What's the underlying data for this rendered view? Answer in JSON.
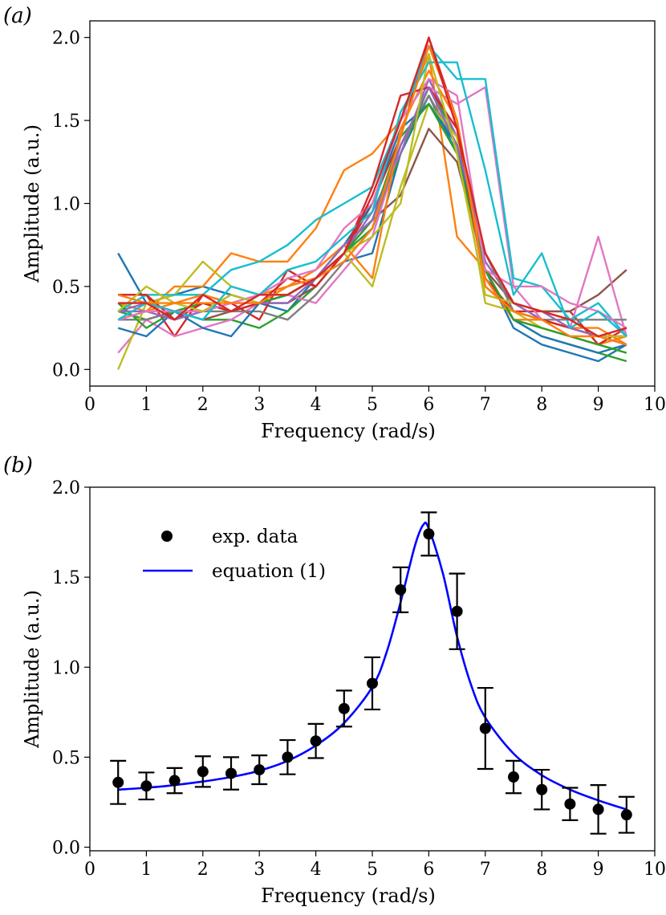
{
  "chart_data": [
    {
      "type": "line",
      "panel_label": "(a)",
      "xlabel": "Frequency (rad/s)",
      "ylabel": "Amplitude (a.u.)",
      "xlim": [
        0,
        10
      ],
      "ylim": [
        -0.1,
        2.1
      ],
      "xticks": [
        0,
        1,
        2,
        3,
        4,
        5,
        6,
        7,
        8,
        9,
        10
      ],
      "yticks": [
        0.0,
        0.5,
        1.0,
        1.5,
        2.0
      ],
      "ytick_labels": [
        "0.0",
        "0.5",
        "1.0",
        "1.5",
        "2.0"
      ],
      "grid": false,
      "x": [
        0.5,
        1.0,
        1.5,
        2.0,
        2.5,
        3.0,
        3.5,
        4.0,
        4.5,
        5.0,
        5.5,
        6.0,
        6.5,
        7.0,
        7.5,
        8.0,
        8.5,
        9.0,
        9.5
      ],
      "series": [
        {
          "color": "#1f77b4",
          "values": [
            0.7,
            0.4,
            0.45,
            0.5,
            0.45,
            0.4,
            0.35,
            0.55,
            0.65,
            0.7,
            1.3,
            1.65,
            1.3,
            0.6,
            0.25,
            0.15,
            0.1,
            0.05,
            0.15
          ]
        },
        {
          "color": "#ff7f0e",
          "values": [
            0.4,
            0.35,
            0.5,
            0.5,
            0.7,
            0.65,
            0.65,
            0.85,
            1.2,
            1.3,
            1.5,
            1.9,
            0.8,
            0.6,
            0.3,
            0.25,
            0.2,
            0.15,
            0.2
          ]
        },
        {
          "color": "#2ca02c",
          "values": [
            0.35,
            0.3,
            0.35,
            0.3,
            0.3,
            0.25,
            0.35,
            0.5,
            0.7,
            0.85,
            1.3,
            1.7,
            1.4,
            0.6,
            0.3,
            0.2,
            0.15,
            0.1,
            0.05
          ]
        },
        {
          "color": "#d62728",
          "values": [
            0.45,
            0.45,
            0.2,
            0.45,
            0.4,
            0.3,
            0.6,
            0.5,
            0.7,
            1.0,
            1.4,
            2.0,
            1.5,
            0.55,
            0.35,
            0.35,
            0.35,
            0.15,
            0.25
          ]
        },
        {
          "color": "#9467bd",
          "values": [
            0.35,
            0.4,
            0.35,
            0.4,
            0.35,
            0.4,
            0.45,
            0.55,
            0.7,
            0.95,
            1.3,
            1.75,
            1.4,
            0.65,
            0.4,
            0.3,
            0.25,
            0.2,
            0.15
          ]
        },
        {
          "color": "#8c564b",
          "values": [
            0.3,
            0.3,
            0.35,
            0.3,
            0.35,
            0.4,
            0.4,
            0.5,
            0.7,
            0.9,
            1.05,
            1.45,
            1.25,
            0.6,
            0.4,
            0.35,
            0.35,
            0.45,
            0.6
          ]
        },
        {
          "color": "#e377c2",
          "values": [
            0.1,
            0.3,
            0.2,
            0.25,
            0.3,
            0.4,
            0.45,
            0.4,
            0.6,
            0.8,
            1.35,
            1.7,
            1.6,
            1.7,
            0.5,
            0.3,
            0.25,
            0.8,
            0.2
          ]
        },
        {
          "color": "#7f7f7f",
          "values": [
            0.3,
            0.3,
            0.35,
            0.35,
            0.35,
            0.35,
            0.3,
            0.45,
            0.65,
            0.85,
            1.35,
            1.65,
            1.35,
            0.7,
            0.35,
            0.3,
            0.3,
            0.3,
            0.3
          ]
        },
        {
          "color": "#bcbd22",
          "values": [
            0.0,
            0.4,
            0.45,
            0.65,
            0.5,
            0.45,
            0.45,
            0.55,
            0.7,
            0.5,
            1.1,
            1.6,
            1.4,
            0.4,
            0.35,
            0.25,
            0.2,
            0.15,
            0.1
          ]
        },
        {
          "color": "#17becf",
          "values": [
            0.35,
            0.45,
            0.45,
            0.45,
            0.6,
            0.65,
            0.75,
            0.9,
            1.0,
            1.1,
            1.5,
            1.95,
            1.75,
            1.75,
            0.55,
            0.5,
            0.3,
            0.4,
            0.2
          ]
        },
        {
          "color": "#1f77b4",
          "values": [
            0.25,
            0.2,
            0.35,
            0.25,
            0.2,
            0.4,
            0.45,
            0.55,
            0.75,
            1.0,
            1.45,
            1.6,
            1.35,
            0.55,
            0.3,
            0.2,
            0.15,
            0.1,
            0.15
          ]
        },
        {
          "color": "#ff7f0e",
          "values": [
            0.3,
            0.35,
            0.4,
            0.45,
            0.4,
            0.45,
            0.5,
            0.6,
            0.75,
            0.55,
            1.45,
            1.8,
            1.5,
            0.55,
            0.3,
            0.3,
            0.25,
            0.25,
            0.15
          ]
        },
        {
          "color": "#2ca02c",
          "values": [
            0.4,
            0.25,
            0.35,
            0.4,
            0.35,
            0.4,
            0.45,
            0.55,
            0.7,
            0.9,
            1.4,
            1.6,
            1.3,
            0.6,
            0.3,
            0.25,
            0.2,
            0.15,
            0.1
          ]
        },
        {
          "color": "#d62728",
          "values": [
            0.45,
            0.45,
            0.3,
            0.4,
            0.35,
            0.4,
            0.55,
            0.5,
            0.7,
            1.1,
            1.65,
            1.7,
            1.45,
            0.5,
            0.35,
            0.3,
            0.25,
            0.2,
            0.2
          ]
        },
        {
          "color": "#9467bd",
          "values": [
            0.35,
            0.35,
            0.3,
            0.35,
            0.4,
            0.4,
            0.4,
            0.55,
            0.75,
            0.9,
            1.35,
            1.7,
            1.35,
            0.7,
            0.4,
            0.35,
            0.25,
            0.2,
            0.15
          ]
        },
        {
          "color": "#e377c2",
          "values": [
            0.3,
            0.35,
            0.35,
            0.35,
            0.4,
            0.45,
            0.55,
            0.6,
            0.85,
            1.0,
            1.5,
            1.75,
            1.65,
            0.6,
            0.5,
            0.5,
            0.4,
            0.35,
            0.25
          ]
        },
        {
          "color": "#bcbd22",
          "values": [
            0.35,
            0.5,
            0.4,
            0.35,
            0.45,
            0.4,
            0.5,
            0.55,
            0.7,
            0.8,
            1.0,
            1.9,
            1.3,
            0.45,
            0.4,
            0.35,
            0.3,
            0.2,
            0.2
          ]
        },
        {
          "color": "#17becf",
          "values": [
            0.3,
            0.4,
            0.35,
            0.3,
            0.5,
            0.45,
            0.6,
            0.65,
            0.8,
            0.95,
            1.55,
            1.85,
            1.85,
            1.2,
            0.45,
            0.7,
            0.25,
            0.35,
            0.2
          ]
        },
        {
          "color": "#ff7f0e",
          "values": [
            0.45,
            0.4,
            0.4,
            0.4,
            0.4,
            0.4,
            0.5,
            0.55,
            0.65,
            0.85,
            1.4,
            1.95,
            1.5,
            0.5,
            0.35,
            0.3,
            0.2,
            0.2,
            0.15
          ]
        },
        {
          "color": "#d62728",
          "values": [
            0.4,
            0.4,
            0.3,
            0.45,
            0.35,
            0.45,
            0.45,
            0.55,
            0.7,
            1.05,
            1.5,
            2.0,
            1.45,
            0.7,
            0.4,
            0.35,
            0.3,
            0.2,
            0.25
          ]
        }
      ]
    },
    {
      "type": "scatter",
      "panel_label": "(b)",
      "xlabel": "Frequency (rad/s)",
      "ylabel": "Amplitude (a.u.)",
      "xlim": [
        0,
        10
      ],
      "ylim": [
        -0.02,
        2.0
      ],
      "xticks": [
        0,
        1,
        2,
        3,
        4,
        5,
        6,
        7,
        8,
        9,
        10
      ],
      "yticks": [
        0.0,
        0.5,
        1.0,
        1.5,
        2.0
      ],
      "ytick_labels": [
        "0.0",
        "0.5",
        "1.0",
        "1.5",
        "2.0"
      ],
      "grid": false,
      "legend_position": "upper-left",
      "series": [
        {
          "name": "exp. data",
          "kind": "errorbar-scatter",
          "color": "#000000",
          "x": [
            0.5,
            1.0,
            1.5,
            2.0,
            2.5,
            3.0,
            3.5,
            4.0,
            4.5,
            5.0,
            5.5,
            6.0,
            6.5,
            7.0,
            7.5,
            8.0,
            8.5,
            9.0,
            9.5
          ],
          "y": [
            0.36,
            0.34,
            0.37,
            0.42,
            0.41,
            0.43,
            0.5,
            0.59,
            0.77,
            0.91,
            1.43,
            1.74,
            1.31,
            0.66,
            0.39,
            0.32,
            0.24,
            0.21,
            0.18
          ],
          "err": [
            0.12,
            0.075,
            0.07,
            0.085,
            0.09,
            0.08,
            0.095,
            0.095,
            0.1,
            0.145,
            0.125,
            0.12,
            0.21,
            0.225,
            0.09,
            0.11,
            0.09,
            0.135,
            0.1
          ]
        },
        {
          "name": "equation (1)",
          "kind": "line",
          "color": "#0000ff",
          "x": [
            0.5,
            1.0,
            1.5,
            2.0,
            2.5,
            3.0,
            3.5,
            4.0,
            4.5,
            5.0,
            5.25,
            5.5,
            5.75,
            5.9,
            6.0,
            6.25,
            6.5,
            6.75,
            7.0,
            7.5,
            8.0,
            8.5,
            9.0,
            9.5
          ],
          "y": [
            0.32,
            0.33,
            0.345,
            0.365,
            0.39,
            0.425,
            0.48,
            0.565,
            0.69,
            0.89,
            1.08,
            1.36,
            1.67,
            1.79,
            1.77,
            1.52,
            1.17,
            0.9,
            0.72,
            0.52,
            0.4,
            0.32,
            0.26,
            0.21
          ]
        }
      ]
    }
  ]
}
